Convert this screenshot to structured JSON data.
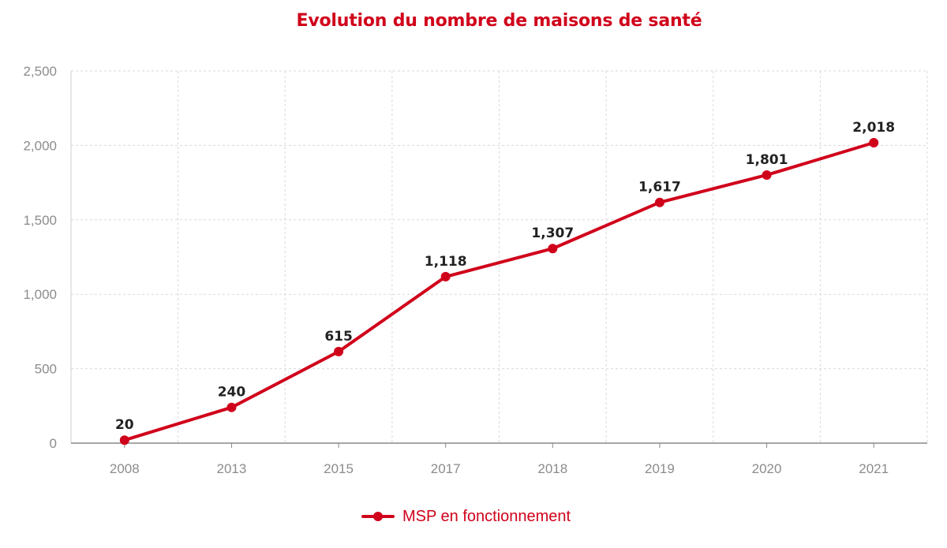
{
  "title": "Evolution du nombre de maisons de santé",
  "legend": {
    "label": "MSP en fonctionnement"
  },
  "colors": {
    "series": "#d0021b",
    "grid": "#d9d9d9",
    "axis": "#8c8c8c",
    "label": "#222222"
  },
  "chart_data": {
    "type": "line",
    "title": "Evolution du nombre de maisons de santé",
    "xlabel": "",
    "ylabel": "",
    "categories": [
      "2008",
      "2013",
      "2015",
      "2017",
      "2018",
      "2019",
      "2020",
      "2021"
    ],
    "series": [
      {
        "name": "MSP en fonctionnement",
        "values": [
          20,
          240,
          615,
          1118,
          1307,
          1617,
          1801,
          2018
        ]
      }
    ],
    "data_labels": [
      "20",
      "240",
      "615",
      "1,118",
      "1,307",
      "1,617",
      "1,801",
      "2,018"
    ],
    "ylim": [
      0,
      2500
    ],
    "yticks": [
      0,
      500,
      1000,
      1500,
      2000,
      2500
    ],
    "ytick_labels": [
      "0",
      "500",
      "1,000",
      "1,500",
      "2,000",
      "2,500"
    ],
    "grid": true,
    "legend_position": "bottom-center"
  }
}
